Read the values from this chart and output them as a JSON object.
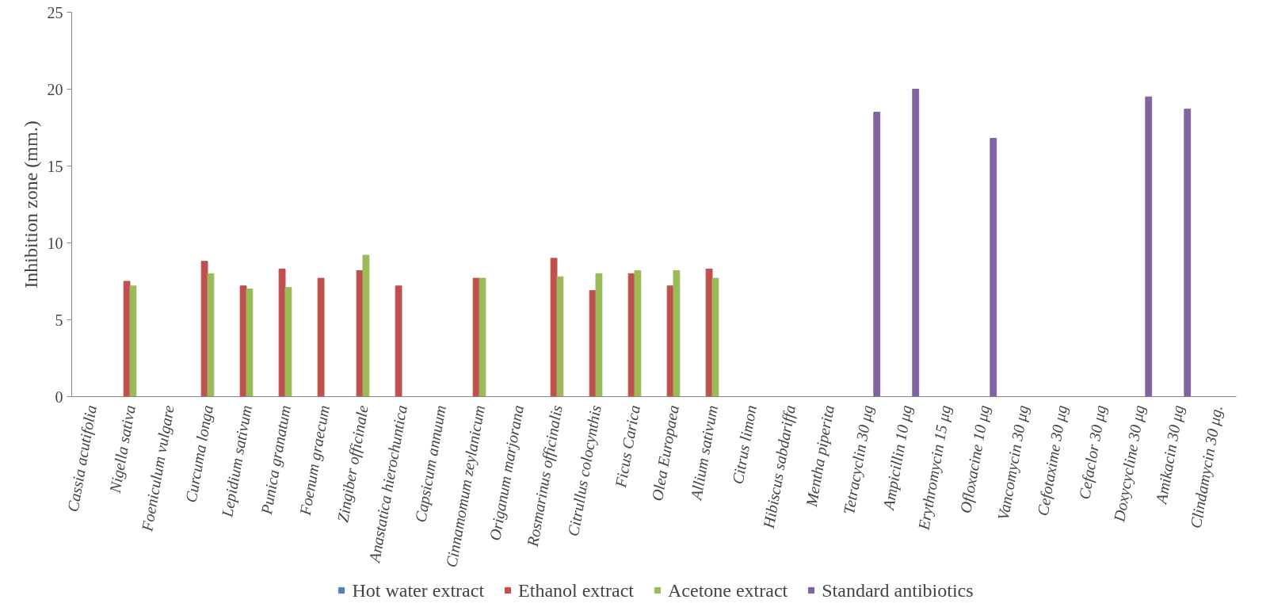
{
  "chart_data": {
    "type": "bar",
    "ylabel": "Inhibition zone (mm.)",
    "categories": [
      "Cassia acutifolia",
      "Nigella sativa",
      "Foeniculum vulgare",
      "Curcuma longa",
      "Lepidium sativum",
      "Punica granatum",
      "Foenum graecum",
      "Zingiber officinale",
      "Anastatica hierochuntica",
      "Capsicum annuum",
      "Cinnamomum zeylanicum",
      "Origanum marjorana",
      "Rosmarinus officinalis",
      "Citrullus colocynthis",
      "Ficus Carica",
      "Olea Europaea",
      "Allium sativum",
      "Citrus limon",
      "Hibiscus sabdariffa",
      "Mentha piperita",
      "Tetracyclin 30 μg",
      "Ampicillin 10 μg",
      "Erythromycin 15 μg",
      "Ofloxacine 10 μg",
      "Vancomycin 30 μg",
      "Cefotaxime 30 μg",
      "Cefaclor 30 μg",
      "Doxycycline 30 μg",
      "Amikacin 30 μg",
      "Clindamycin 30 μg."
    ],
    "series": [
      {
        "name": "Hot water extract",
        "color": "#4f81bd",
        "values": [
          0,
          0,
          0,
          0,
          0,
          0,
          0,
          0,
          0,
          0,
          0,
          0,
          0,
          0,
          0,
          0,
          0,
          0,
          0,
          0,
          0,
          0,
          0,
          0,
          0,
          0,
          0,
          0,
          0,
          0
        ]
      },
      {
        "name": "Ethanol extract",
        "color": "#c0504d",
        "values": [
          null,
          7.5,
          null,
          8.8,
          7.2,
          8.3,
          7.7,
          8.2,
          7.2,
          null,
          7.7,
          null,
          9.0,
          6.9,
          8.0,
          7.2,
          8.3,
          null,
          null,
          null,
          null,
          null,
          null,
          null,
          null,
          null,
          null,
          null,
          null,
          null
        ]
      },
      {
        "name": "Acetone extract",
        "color": "#9bbb59",
        "values": [
          null,
          7.2,
          null,
          8.0,
          7.0,
          7.1,
          null,
          9.2,
          null,
          null,
          7.7,
          null,
          7.8,
          8.0,
          8.2,
          8.2,
          7.7,
          null,
          null,
          null,
          null,
          null,
          null,
          null,
          null,
          null,
          null,
          null,
          null,
          null
        ]
      },
      {
        "name": "Standard antibiotics",
        "color": "#8064a2",
        "values": [
          null,
          null,
          null,
          null,
          null,
          null,
          null,
          null,
          null,
          null,
          null,
          null,
          null,
          null,
          null,
          null,
          null,
          null,
          null,
          null,
          18.5,
          20.0,
          null,
          16.8,
          null,
          null,
          null,
          19.5,
          18.7,
          null
        ]
      }
    ],
    "ylim": [
      0,
      25
    ],
    "yticks": [
      0,
      5,
      10,
      15,
      20,
      25
    ],
    "grid": false,
    "legend": "bottom"
  }
}
